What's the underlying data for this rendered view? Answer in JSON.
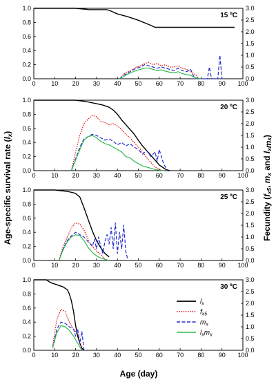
{
  "figure": {
    "xlabel": "Age (day)",
    "ylabel_left": "Age-specific survival rate (lx)",
    "ylabel_right": "Fecundity (fx5, mx and lxmx)",
    "x_ticks": [
      "0",
      "10",
      "20",
      "30",
      "40",
      "50",
      "60",
      "70",
      "80",
      "90",
      "100"
    ],
    "y_left_ticks": [
      "0.0",
      "0.2",
      "0.4",
      "0.6",
      "0.8",
      "1.0"
    ],
    "y_right_ticks": [
      "0.0",
      "0.5",
      "1.0",
      "1.5",
      "2.0",
      "2.5",
      "3.0"
    ],
    "legend": [
      {
        "label": "lx",
        "color": "#000000",
        "dash": "solid"
      },
      {
        "label": "fx5",
        "color": "#e01010",
        "dash": "dotted"
      },
      {
        "label": "mx",
        "color": "#1f2ad0",
        "dash": "dashed"
      },
      {
        "label": "lxmx",
        "color": "#2fb84a",
        "dash": "solid"
      }
    ]
  },
  "chart_data": [
    {
      "type": "line",
      "title": "15 ºC",
      "xlim": [
        0,
        100
      ],
      "ylim_left": [
        0,
        1
      ],
      "ylim_right": [
        0,
        3
      ],
      "series": [
        {
          "name": "lx",
          "axis": "left",
          "x": [
            0,
            10,
            20,
            27,
            30,
            35,
            37,
            40,
            45,
            50,
            55,
            58,
            60,
            63,
            66,
            68,
            70,
            72,
            74,
            76,
            78,
            80,
            82,
            85,
            88,
            91,
            94,
            96
          ],
          "values": [
            1.0,
            1.0,
            1.0,
            0.98,
            0.98,
            0.98,
            0.96,
            0.92,
            0.88,
            0.83,
            0.77,
            0.73,
            0.73,
            0.73,
            0.73,
            0.73,
            0.73,
            0.73,
            0.73,
            0.73,
            0.73,
            0.73,
            0.73,
            0.73,
            0.73,
            0.73,
            0.73,
            0.73
          ]
        },
        {
          "name": "fx5",
          "axis": "right",
          "x": [
            41,
            43,
            45,
            47,
            49,
            51,
            53,
            55,
            57,
            59,
            61,
            63,
            65,
            67,
            69,
            71,
            73,
            75,
            77,
            79
          ],
          "values": [
            0.0,
            0.2,
            0.3,
            0.4,
            0.5,
            0.55,
            0.65,
            0.7,
            0.6,
            0.65,
            0.55,
            0.6,
            0.5,
            0.5,
            0.55,
            0.45,
            0.4,
            0.3,
            0.2,
            0.0
          ]
        },
        {
          "name": "mx",
          "axis": "right",
          "x": [
            41,
            43,
            45,
            47,
            49,
            51,
            53,
            55,
            57,
            59,
            61,
            63,
            65,
            67,
            69,
            71,
            73,
            75,
            77,
            80,
            83,
            84,
            85,
            87,
            88,
            89,
            90,
            91
          ],
          "values": [
            0.0,
            0.15,
            0.25,
            0.35,
            0.45,
            0.5,
            0.6,
            0.55,
            0.5,
            0.45,
            0.5,
            0.45,
            0.4,
            0.35,
            0.45,
            0.35,
            0.3,
            0.4,
            0.0,
            0.0,
            0.0,
            0.5,
            0.0,
            0.0,
            0.0,
            1.0,
            0.0,
            0.0
          ]
        },
        {
          "name": "lxmx",
          "axis": "right",
          "x": [
            41,
            43,
            45,
            47,
            49,
            51,
            53,
            55,
            57,
            59,
            61,
            63,
            65,
            67,
            69,
            71,
            73,
            75,
            77,
            80
          ],
          "values": [
            0.0,
            0.1,
            0.2,
            0.28,
            0.35,
            0.4,
            0.45,
            0.45,
            0.4,
            0.35,
            0.38,
            0.32,
            0.28,
            0.25,
            0.3,
            0.22,
            0.18,
            0.15,
            0.05,
            0.0
          ]
        }
      ]
    },
    {
      "type": "line",
      "title": "20 ºC",
      "xlim": [
        0,
        100
      ],
      "ylim_left": [
        0,
        1
      ],
      "ylim_right": [
        0,
        3
      ],
      "series": [
        {
          "name": "lx",
          "axis": "left",
          "x": [
            0,
            10,
            20,
            25,
            30,
            33,
            36,
            38,
            40,
            42,
            45,
            48,
            50,
            52,
            55,
            58,
            60,
            63,
            65
          ],
          "values": [
            1.0,
            1.0,
            1.0,
            0.98,
            0.95,
            0.93,
            0.9,
            0.86,
            0.8,
            0.72,
            0.62,
            0.52,
            0.43,
            0.35,
            0.25,
            0.15,
            0.08,
            0.02,
            0.0
          ]
        },
        {
          "name": "fx5",
          "axis": "right",
          "x": [
            18,
            20,
            22,
            24,
            26,
            28,
            30,
            32,
            34,
            36,
            38,
            40,
            42,
            44,
            46,
            48,
            50,
            52,
            54,
            56,
            58,
            60,
            62
          ],
          "values": [
            0.0,
            0.8,
            1.5,
            2.0,
            2.2,
            2.35,
            2.3,
            2.1,
            2.05,
            1.95,
            2.0,
            1.9,
            1.75,
            1.55,
            1.4,
            1.2,
            1.0,
            0.8,
            0.55,
            0.35,
            0.15,
            0.05,
            0.0
          ]
        },
        {
          "name": "mx",
          "axis": "right",
          "x": [
            18,
            20,
            22,
            24,
            26,
            28,
            30,
            32,
            34,
            36,
            38,
            40,
            42,
            44,
            46,
            48,
            50,
            52,
            54,
            56,
            58,
            59,
            60,
            62,
            63,
            64
          ],
          "values": [
            0.0,
            0.5,
            1.0,
            1.35,
            1.45,
            1.55,
            1.5,
            1.4,
            1.3,
            1.35,
            1.25,
            1.1,
            1.2,
            1.05,
            1.15,
            1.0,
            0.9,
            0.7,
            0.85,
            0.6,
            0.8,
            0.4,
            0.9,
            0.3,
            0.15,
            0.0
          ]
        },
        {
          "name": "lxmx",
          "axis": "right",
          "x": [
            18,
            20,
            22,
            24,
            26,
            28,
            30,
            32,
            34,
            36,
            38,
            40,
            42,
            44,
            46,
            48,
            50,
            52,
            54,
            56,
            58,
            60,
            62
          ],
          "values": [
            0.0,
            0.45,
            0.9,
            1.3,
            1.45,
            1.5,
            1.4,
            1.25,
            1.15,
            1.1,
            1.0,
            0.9,
            0.8,
            0.6,
            0.55,
            0.4,
            0.3,
            0.2,
            0.15,
            0.1,
            0.05,
            0.02,
            0.0
          ]
        }
      ]
    },
    {
      "type": "line",
      "title": "25 ºC",
      "xlim": [
        0,
        100
      ],
      "ylim_left": [
        0,
        1
      ],
      "ylim_right": [
        0,
        3
      ],
      "series": [
        {
          "name": "lx",
          "axis": "left",
          "x": [
            0,
            10,
            16,
            19,
            20,
            22,
            24,
            26,
            28,
            30,
            32,
            34,
            36
          ],
          "values": [
            1.0,
            1.0,
            0.98,
            0.96,
            0.95,
            0.9,
            0.75,
            0.58,
            0.42,
            0.28,
            0.18,
            0.1,
            0.05
          ]
        },
        {
          "name": "fx5",
          "axis": "right",
          "x": [
            12,
            14,
            16,
            18,
            20,
            22,
            24,
            26,
            28,
            30,
            32,
            34
          ],
          "values": [
            0.0,
            0.6,
            1.0,
            1.4,
            1.6,
            1.55,
            1.3,
            0.9,
            0.6,
            0.4,
            0.25,
            0.05
          ]
        },
        {
          "name": "mx",
          "axis": "right",
          "x": [
            12,
            14,
            16,
            18,
            20,
            22,
            24,
            26,
            28,
            29,
            30,
            31,
            32,
            33,
            34,
            35,
            36,
            37,
            38,
            39,
            40,
            41,
            42,
            43,
            44,
            45
          ],
          "values": [
            0.0,
            0.5,
            0.85,
            1.05,
            1.2,
            1.1,
            1.0,
            0.8,
            0.6,
            0.9,
            0.5,
            1.0,
            0.6,
            0.3,
            0.8,
            1.1,
            0.7,
            1.4,
            0.5,
            1.6,
            0.3,
            1.2,
            0.5,
            1.5,
            0.4,
            0.0
          ]
        },
        {
          "name": "lxmx",
          "axis": "right",
          "x": [
            12,
            14,
            16,
            18,
            20,
            22,
            24,
            26,
            28,
            30,
            32,
            34,
            36
          ],
          "values": [
            0.0,
            0.45,
            0.8,
            1.0,
            1.1,
            1.05,
            0.85,
            0.55,
            0.35,
            0.2,
            0.1,
            0.05,
            0.0
          ]
        }
      ]
    },
    {
      "type": "line",
      "title": "30 ºC",
      "xlim": [
        0,
        100
      ],
      "ylim_left": [
        0,
        1
      ],
      "ylim_right": [
        0,
        3
      ],
      "series": [
        {
          "name": "lx",
          "axis": "left",
          "x": [
            0,
            6,
            8,
            10,
            12,
            14,
            16,
            17,
            18,
            19,
            20,
            21,
            22,
            23,
            24
          ],
          "values": [
            1.0,
            1.0,
            0.96,
            0.94,
            0.92,
            0.9,
            0.86,
            0.8,
            0.7,
            0.55,
            0.35,
            0.2,
            0.1,
            0.03,
            0.0
          ]
        },
        {
          "name": "fx5",
          "axis": "right",
          "x": [
            9,
            11,
            13,
            15,
            17,
            19,
            21,
            23
          ],
          "values": [
            0.2,
            1.3,
            1.75,
            1.65,
            1.2,
            0.9,
            0.7,
            0.0
          ]
        },
        {
          "name": "mx",
          "axis": "right",
          "x": [
            9,
            11,
            13,
            15,
            17,
            19,
            20,
            21,
            22,
            23,
            24
          ],
          "values": [
            0.1,
            0.9,
            1.2,
            1.15,
            1.0,
            0.9,
            0.6,
            0.9,
            0.3,
            0.8,
            0.0
          ]
        },
        {
          "name": "lxmx",
          "axis": "right",
          "x": [
            9,
            11,
            13,
            15,
            17,
            19,
            21,
            23
          ],
          "values": [
            0.1,
            0.75,
            1.05,
            1.0,
            0.85,
            0.6,
            0.3,
            0.0
          ]
        }
      ]
    }
  ]
}
